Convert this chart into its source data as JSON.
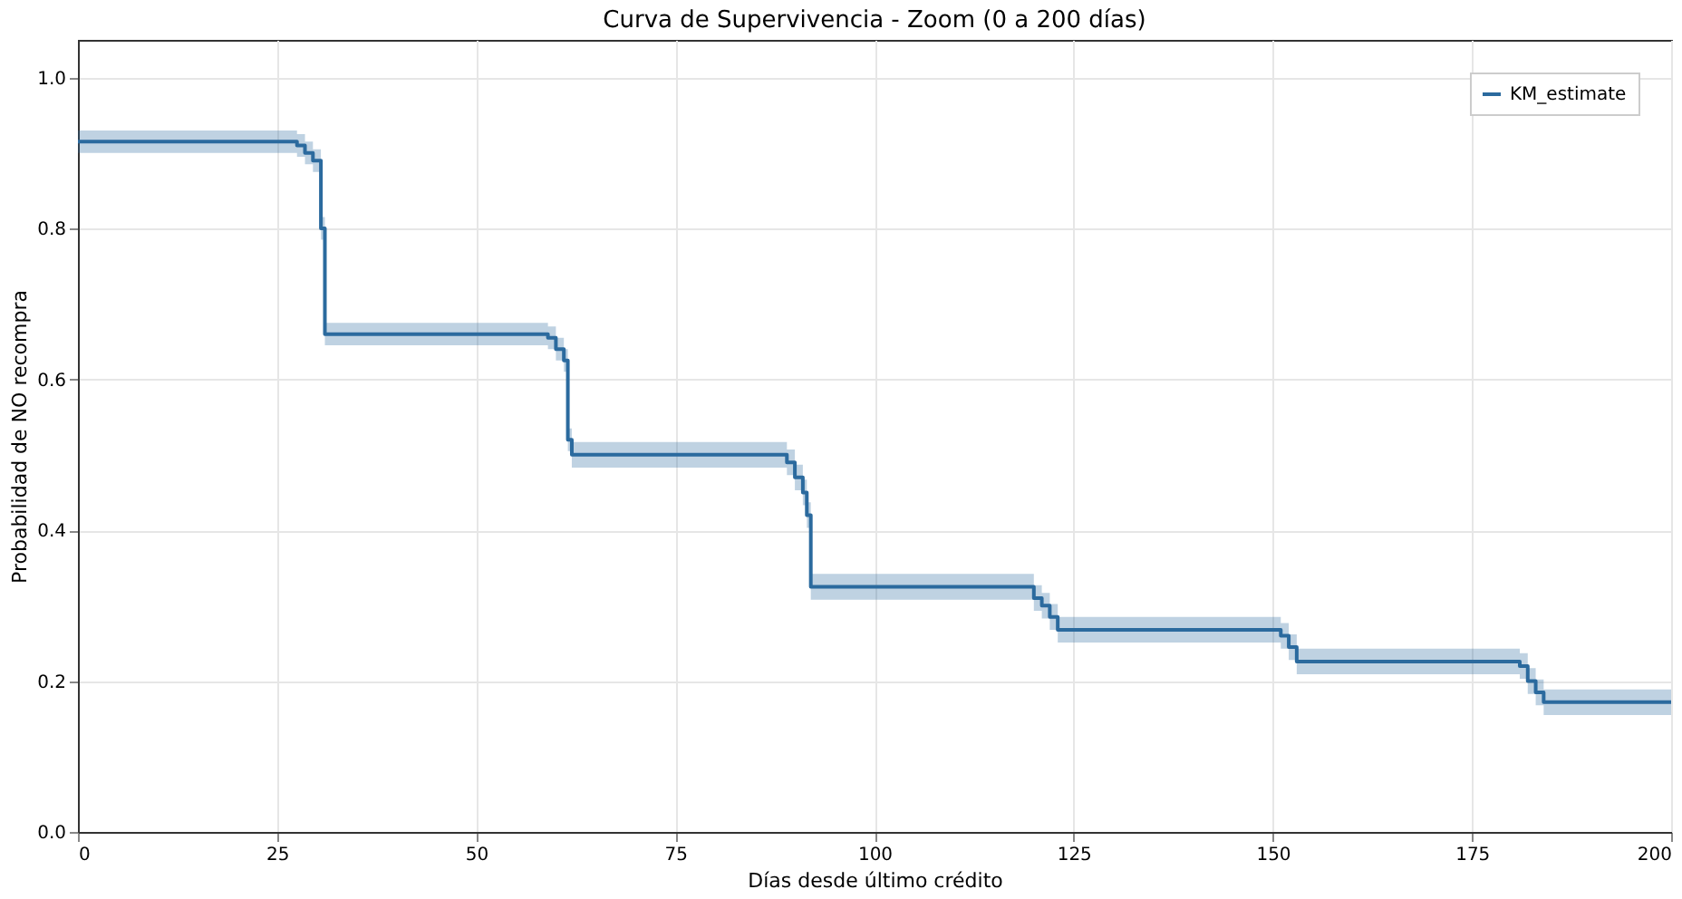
{
  "chart_data": {
    "type": "step",
    "title": "Curva de Supervivencia - Zoom (0 a 200 días)",
    "xlabel": "Días desde último crédito",
    "ylabel": "Probabilidad de NO recompra",
    "x": [
      0,
      27.5,
      28.5,
      29.5,
      30.5,
      31,
      59,
      60,
      61,
      61.5,
      62,
      89,
      90,
      91,
      91.5,
      92,
      120,
      121,
      122,
      123,
      151,
      152,
      153,
      181,
      182,
      183,
      184,
      200
    ],
    "series": [
      {
        "name": "KM_estimate",
        "color": "#2b6a9e",
        "values": [
          0.915,
          0.91,
          0.9,
          0.89,
          0.8,
          0.66,
          0.655,
          0.64,
          0.625,
          0.52,
          0.5,
          0.49,
          0.47,
          0.45,
          0.42,
          0.325,
          0.31,
          0.3,
          0.285,
          0.268,
          0.26,
          0.245,
          0.226,
          0.22,
          0.2,
          0.185,
          0.172,
          0.172
        ],
        "lower": [
          0.9,
          0.895,
          0.885,
          0.875,
          0.785,
          0.645,
          0.64,
          0.625,
          0.61,
          0.505,
          0.483,
          0.473,
          0.453,
          0.433,
          0.403,
          0.308,
          0.293,
          0.283,
          0.268,
          0.251,
          0.243,
          0.228,
          0.209,
          0.203,
          0.183,
          0.168,
          0.155,
          0.155
        ],
        "upper": [
          0.93,
          0.925,
          0.915,
          0.905,
          0.815,
          0.675,
          0.67,
          0.655,
          0.64,
          0.535,
          0.517,
          0.507,
          0.487,
          0.467,
          0.437,
          0.342,
          0.327,
          0.317,
          0.302,
          0.285,
          0.277,
          0.262,
          0.243,
          0.237,
          0.217,
          0.202,
          0.189,
          0.189
        ]
      }
    ],
    "xlim": [
      0,
      200
    ],
    "xticks": [
      0,
      25,
      50,
      75,
      100,
      125,
      150,
      175,
      200
    ],
    "ylim": [
      0.0,
      1.05
    ],
    "yticks": [
      {
        "value": 0,
        "label": "0.0"
      },
      {
        "value": 0.2,
        "label": "0.2"
      },
      {
        "value": 0.4,
        "label": "0.4"
      },
      {
        "value": 0.6,
        "label": "0.6"
      },
      {
        "value": 0.8,
        "label": "0.8"
      },
      {
        "value": 1,
        "label": "1.0"
      }
    ],
    "grid": true,
    "legend": "top right",
    "marker": "none",
    "line_style": "solid"
  }
}
